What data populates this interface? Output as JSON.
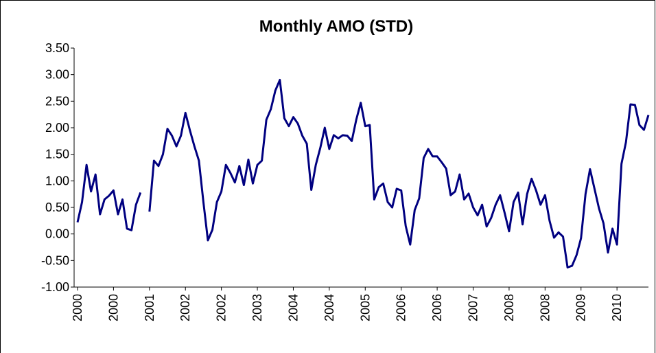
{
  "chart_data": {
    "type": "line",
    "title": "Monthly AMO (STD)",
    "categories": [
      "2000",
      null,
      null,
      null,
      null,
      null,
      null,
      null,
      "2000",
      null,
      null,
      null,
      null,
      null,
      null,
      null,
      "2001",
      null,
      null,
      null,
      null,
      null,
      null,
      null,
      "2002",
      null,
      null,
      null,
      null,
      null,
      null,
      null,
      "2002",
      null,
      null,
      null,
      null,
      null,
      null,
      null,
      "2003",
      null,
      null,
      null,
      null,
      null,
      null,
      null,
      "2004",
      null,
      null,
      null,
      null,
      null,
      null,
      null,
      "2004",
      null,
      null,
      null,
      null,
      null,
      null,
      null,
      "2005",
      null,
      null,
      null,
      null,
      null,
      null,
      null,
      "2006",
      null,
      null,
      null,
      null,
      null,
      null,
      null,
      "2006",
      null,
      null,
      null,
      null,
      null,
      null,
      null,
      "2007",
      null,
      null,
      null,
      null,
      null,
      null,
      null,
      "2008",
      null,
      null,
      null,
      null,
      null,
      null,
      null,
      "2008",
      null,
      null,
      null,
      null,
      null,
      null,
      null,
      "2009",
      null,
      null,
      null,
      null,
      null,
      null,
      null,
      "2010",
      null,
      null,
      null,
      null,
      null,
      null,
      null
    ],
    "values": [
      0.22,
      0.6,
      1.3,
      0.8,
      1.12,
      0.37,
      0.65,
      0.72,
      0.82,
      0.37,
      0.65,
      0.1,
      0.07,
      0.55,
      0.78,
      null,
      0.42,
      1.38,
      1.28,
      1.5,
      1.98,
      1.85,
      1.65,
      1.85,
      2.28,
      1.95,
      1.65,
      1.38,
      0.6,
      -0.12,
      0.08,
      0.6,
      0.8,
      1.3,
      1.15,
      0.97,
      1.28,
      0.92,
      1.4,
      0.95,
      1.3,
      1.38,
      2.15,
      2.35,
      2.7,
      2.9,
      2.18,
      2.03,
      2.2,
      2.08,
      1.85,
      1.7,
      0.83,
      1.3,
      1.62,
      2.0,
      1.6,
      1.86,
      1.8,
      1.86,
      1.85,
      1.75,
      2.15,
      2.47,
      2.03,
      2.05,
      0.65,
      0.88,
      0.95,
      0.6,
      0.5,
      0.85,
      0.82,
      0.15,
      -0.2,
      0.45,
      0.67,
      1.43,
      1.6,
      1.46,
      1.46,
      1.35,
      1.23,
      0.73,
      0.8,
      1.12,
      0.65,
      0.76,
      0.5,
      0.35,
      0.55,
      0.14,
      0.3,
      0.55,
      0.73,
      0.4,
      0.05,
      0.6,
      0.78,
      0.18,
      0.75,
      1.04,
      0.82,
      0.55,
      0.73,
      0.25,
      -0.07,
      0.03,
      -0.05,
      -0.63,
      -0.6,
      -0.4,
      -0.08,
      0.75,
      1.22,
      0.85,
      0.48,
      0.2,
      -0.35,
      0.1,
      -0.2,
      1.32,
      1.73,
      2.44,
      2.43,
      2.05,
      1.96,
      2.24
    ],
    "color": "#000080",
    "ylim": [
      -1,
      3.5
    ],
    "yticks": [
      {
        "value": -1,
        "label": "-1.00"
      },
      {
        "value": -0.5,
        "label": "-0.50"
      },
      {
        "value": 0,
        "label": "0.00"
      },
      {
        "value": 0.5,
        "label": "0.50"
      },
      {
        "value": 1,
        "label": "1.00"
      },
      {
        "value": 1.5,
        "label": "1.50"
      },
      {
        "value": 2,
        "label": "2.00"
      },
      {
        "value": 2.5,
        "label": "2.50"
      },
      {
        "value": 3,
        "label": "3.00"
      },
      {
        "value": 3.5,
        "label": "3.50"
      }
    ],
    "grid": false
  }
}
